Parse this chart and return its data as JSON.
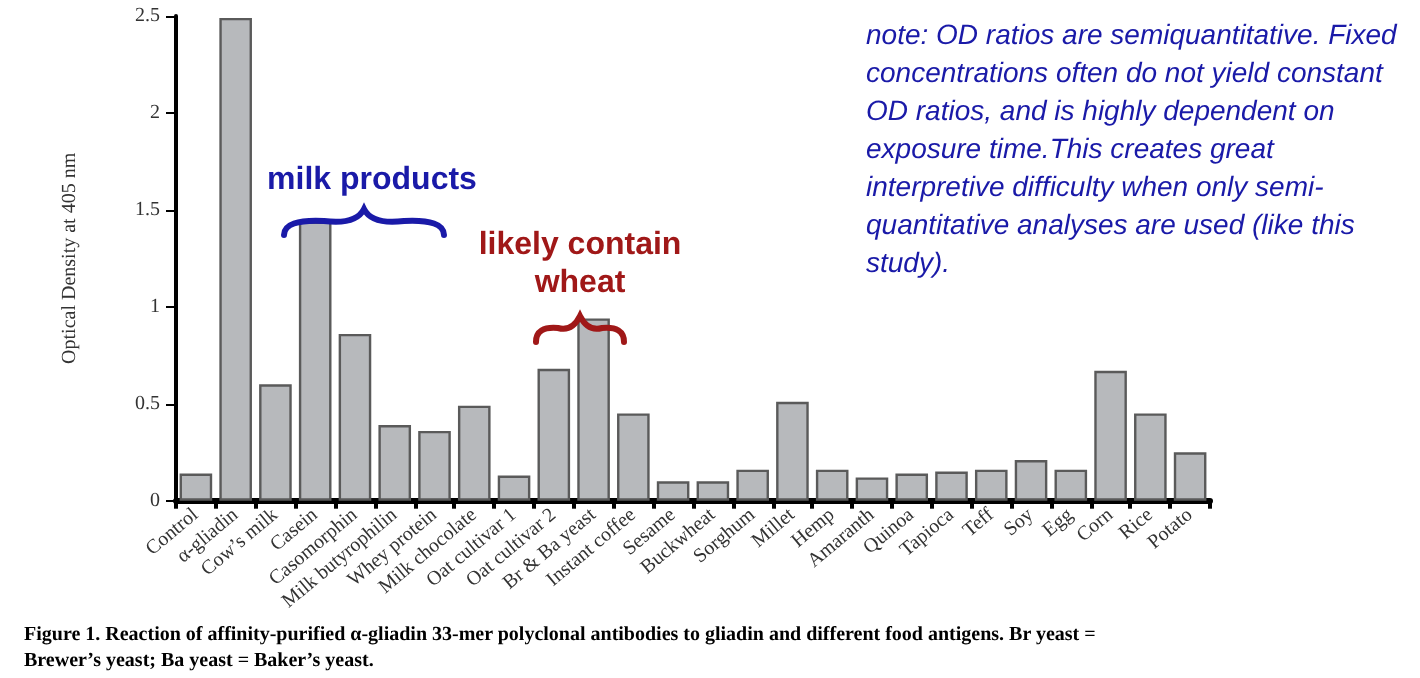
{
  "chart_data": {
    "type": "bar",
    "ylabel": "Optical Density at 405 nm",
    "categories": [
      "Control",
      "α-gliadin",
      "Cow’s milk",
      "Casein",
      "Casomorphin",
      "Milk butyrophilin",
      "Whey protein",
      "Milk chocolate",
      "Oat cultivar 1",
      "Oat cultivar 2",
      "Br & Ba yeast",
      "Instant coffee",
      "Sesame",
      "Buckwheat",
      "Sorghum",
      "Millet",
      "Hemp",
      "Amaranth",
      "Quinoa",
      "Tapioca",
      "Teff",
      "Soy",
      "Egg",
      "Corn",
      "Rice",
      "Potato"
    ],
    "values": [
      0.14,
      2.49,
      0.6,
      1.44,
      0.86,
      0.39,
      0.36,
      0.49,
      0.13,
      0.68,
      0.94,
      0.45,
      0.1,
      0.1,
      0.16,
      0.51,
      0.16,
      0.12,
      0.14,
      0.15,
      0.16,
      0.21,
      0.16,
      0.67,
      0.45,
      0.25
    ],
    "color": "#b7b9bc",
    "ylim": [
      0,
      2.5
    ],
    "yticks": [
      0,
      0.5,
      1,
      1.5,
      2,
      2.5
    ],
    "grid": false,
    "annotations": [
      "milk products",
      "likely contain wheat",
      "note: OD ratios are semiquantitative. Fixed concentrations often do not yield constant OD ratios, and is highly dependent on exposure time.This creates great interpretive difficulty when only semi-quantitative analyses are used (like this study).",
      "Figure 1. Reaction of affinity-purified α-gliadin 33-mer polyclonal antibodies to gliadin and different food antigens. Br yeast = Brewer’s yeast; Ba yeast = Baker’s yeast."
    ]
  }
}
